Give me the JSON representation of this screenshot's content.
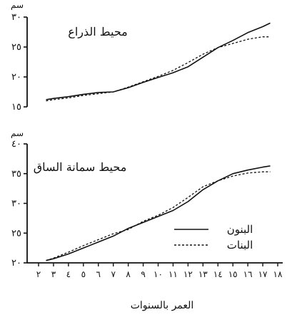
{
  "x_axis": {
    "label": "العمر بالسنوات",
    "ticks": [
      {
        "value": 2,
        "label": "٢"
      },
      {
        "value": 3,
        "label": "٣"
      },
      {
        "value": 4,
        "label": "٤"
      },
      {
        "value": 5,
        "label": "٥"
      },
      {
        "value": 6,
        "label": "٦"
      },
      {
        "value": 7,
        "label": "٧"
      },
      {
        "value": 8,
        "label": "٨"
      },
      {
        "value": 9,
        "label": "٩"
      },
      {
        "value": 10,
        "label": "١٠"
      },
      {
        "value": 11,
        "label": "١١"
      },
      {
        "value": 12,
        "label": "١٢"
      },
      {
        "value": 13,
        "label": "١٣"
      },
      {
        "value": 14,
        "label": "١٤"
      },
      {
        "value": 15,
        "label": "١٥"
      },
      {
        "value": 16,
        "label": "١٦"
      },
      {
        "value": 17,
        "label": "١٧"
      },
      {
        "value": 18,
        "label": "١٨"
      }
    ]
  },
  "chart_data": [
    {
      "type": "line",
      "title": "محيط الذراع",
      "ylabel": "سم",
      "xlabel": "العمر بالسنوات",
      "xlim": [
        2,
        18
      ],
      "ylim": [
        15,
        30
      ],
      "yticks": [
        {
          "value": 15,
          "label": "١٥"
        },
        {
          "value": 20,
          "label": "٢٠"
        },
        {
          "value": 25,
          "label": "٢٥"
        },
        {
          "value": 30,
          "label": "٣٠"
        }
      ],
      "series": [
        {
          "name": "البنون",
          "style": "solid",
          "x": [
            2.5,
            3,
            4,
            5,
            6,
            7,
            8,
            9,
            10,
            11,
            12,
            13,
            14,
            15,
            16,
            17,
            17.5
          ],
          "y": [
            16.2,
            16.4,
            16.7,
            17.1,
            17.4,
            17.5,
            18.2,
            19.1,
            19.9,
            20.7,
            21.7,
            23.3,
            24.9,
            26.1,
            27.4,
            28.4,
            29.0
          ]
        },
        {
          "name": "البنات",
          "style": "dashed",
          "x": [
            2.5,
            3,
            4,
            5,
            6,
            7,
            8,
            9,
            10,
            11,
            12,
            13,
            14,
            15,
            16,
            17,
            17.5
          ],
          "y": [
            16.0,
            16.2,
            16.5,
            16.9,
            17.2,
            17.5,
            18.3,
            19.2,
            20.1,
            21.1,
            22.4,
            23.8,
            24.9,
            25.6,
            26.3,
            26.7,
            26.7
          ]
        }
      ]
    },
    {
      "type": "line",
      "title": "محيط سمانة الساق",
      "ylabel": "سم",
      "xlabel": "العمر بالسنوات",
      "xlim": [
        2,
        18
      ],
      "ylim": [
        20,
        40
      ],
      "yticks": [
        {
          "value": 20,
          "label": "٢٠"
        },
        {
          "value": 25,
          "label": "٢٥"
        },
        {
          "value": 30,
          "label": "٣٠"
        },
        {
          "value": 35,
          "label": "٣٥"
        },
        {
          "value": 40,
          "label": "٤٠"
        }
      ],
      "series": [
        {
          "name": "البنون",
          "style": "solid",
          "x": [
            2.5,
            3,
            4,
            5,
            6,
            7,
            8,
            9,
            10,
            11,
            12,
            13,
            14,
            15,
            16,
            17,
            17.5
          ],
          "y": [
            20.4,
            20.7,
            21.5,
            22.5,
            23.5,
            24.5,
            25.8,
            26.8,
            27.8,
            28.8,
            30.3,
            32.3,
            33.8,
            35.0,
            35.6,
            36.1,
            36.3
          ]
        },
        {
          "name": "البنات",
          "style": "dashed",
          "x": [
            2.5,
            3,
            4,
            5,
            6,
            7,
            8,
            9,
            10,
            11,
            12,
            13,
            14,
            15,
            16,
            17,
            17.5
          ],
          "y": [
            20.4,
            20.8,
            21.8,
            22.9,
            23.9,
            24.9,
            25.6,
            27.0,
            28.0,
            29.3,
            31.0,
            32.8,
            33.8,
            34.6,
            35.1,
            35.3,
            35.3
          ]
        }
      ],
      "legend": {
        "position": "lower-right",
        "entries": [
          {
            "name": "البنون",
            "style": "solid"
          },
          {
            "name": "البنات",
            "style": "dashed"
          }
        ]
      }
    }
  ]
}
